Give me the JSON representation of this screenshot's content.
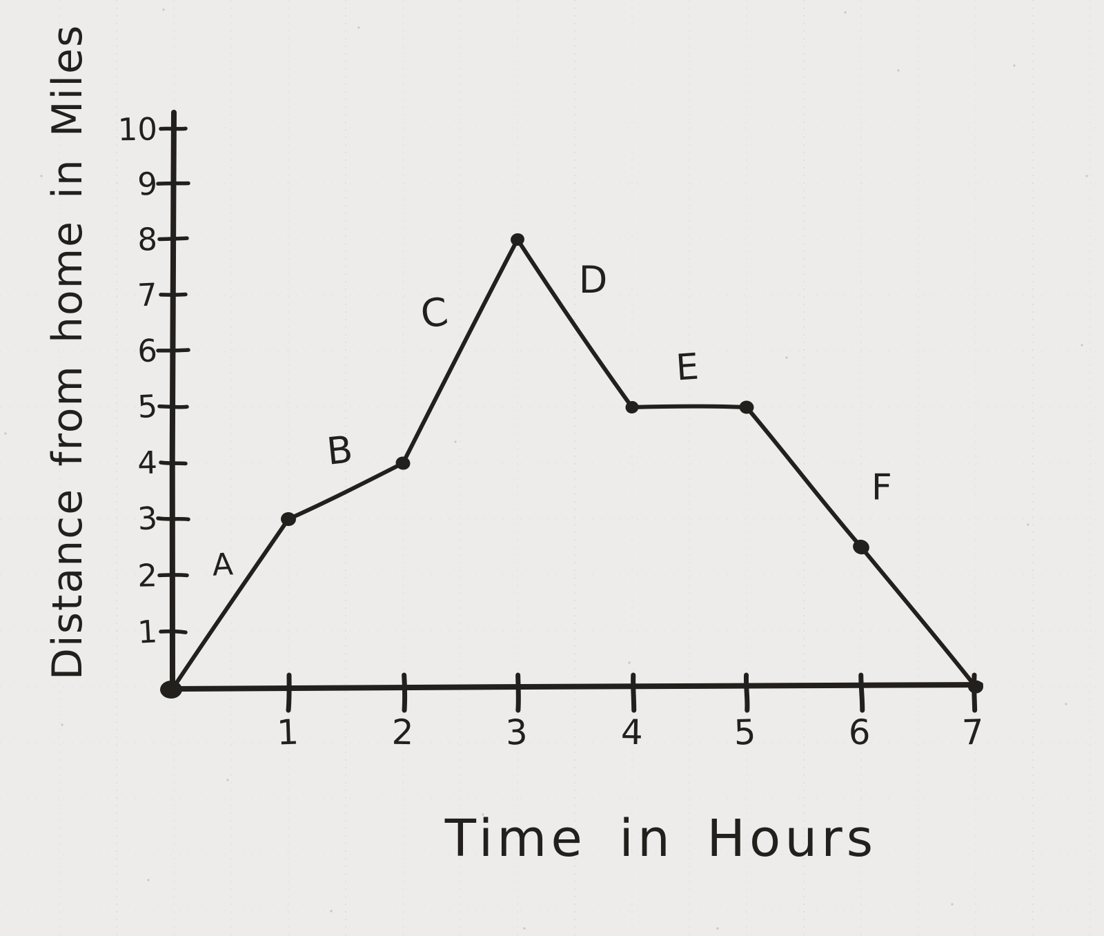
{
  "chart_data": {
    "type": "line",
    "title": "",
    "xlabel": "Time in Hours",
    "ylabel": "Distance from home in Miles",
    "x": [
      0,
      1,
      2,
      3,
      4,
      5,
      6,
      7
    ],
    "y": [
      0,
      3,
      4,
      8,
      5,
      5,
      2.5,
      0
    ],
    "marked_points": [
      [
        0,
        0
      ],
      [
        1,
        3
      ],
      [
        2,
        4
      ],
      [
        3,
        8
      ],
      [
        4,
        5
      ],
      [
        5,
        5
      ],
      [
        6,
        2.5
      ],
      [
        7,
        0
      ]
    ],
    "segment_labels": [
      {
        "label": "A",
        "x": 0.43,
        "y": 2.0
      },
      {
        "label": "B",
        "x": 1.46,
        "y": 4.0
      },
      {
        "label": "C",
        "x": 2.29,
        "y": 6.45
      },
      {
        "label": "D",
        "x": 3.66,
        "y": 7.05
      },
      {
        "label": "E",
        "x": 4.49,
        "y": 5.5
      },
      {
        "label": "F",
        "x": 6.18,
        "y": 3.35
      }
    ],
    "xticks": [
      1,
      2,
      3,
      4,
      5,
      6,
      7
    ],
    "yticks": [
      1,
      2,
      3,
      4,
      5,
      6,
      7,
      8,
      9,
      10
    ],
    "xlim": [
      0,
      7.1
    ],
    "ylim": [
      0,
      10.3
    ],
    "grid": "faint dotted graph-paper lines",
    "legend": null
  },
  "colors": {
    "ink": "#221f1c",
    "paper": "#edecea",
    "grid_dots": "#9b9ba2"
  }
}
